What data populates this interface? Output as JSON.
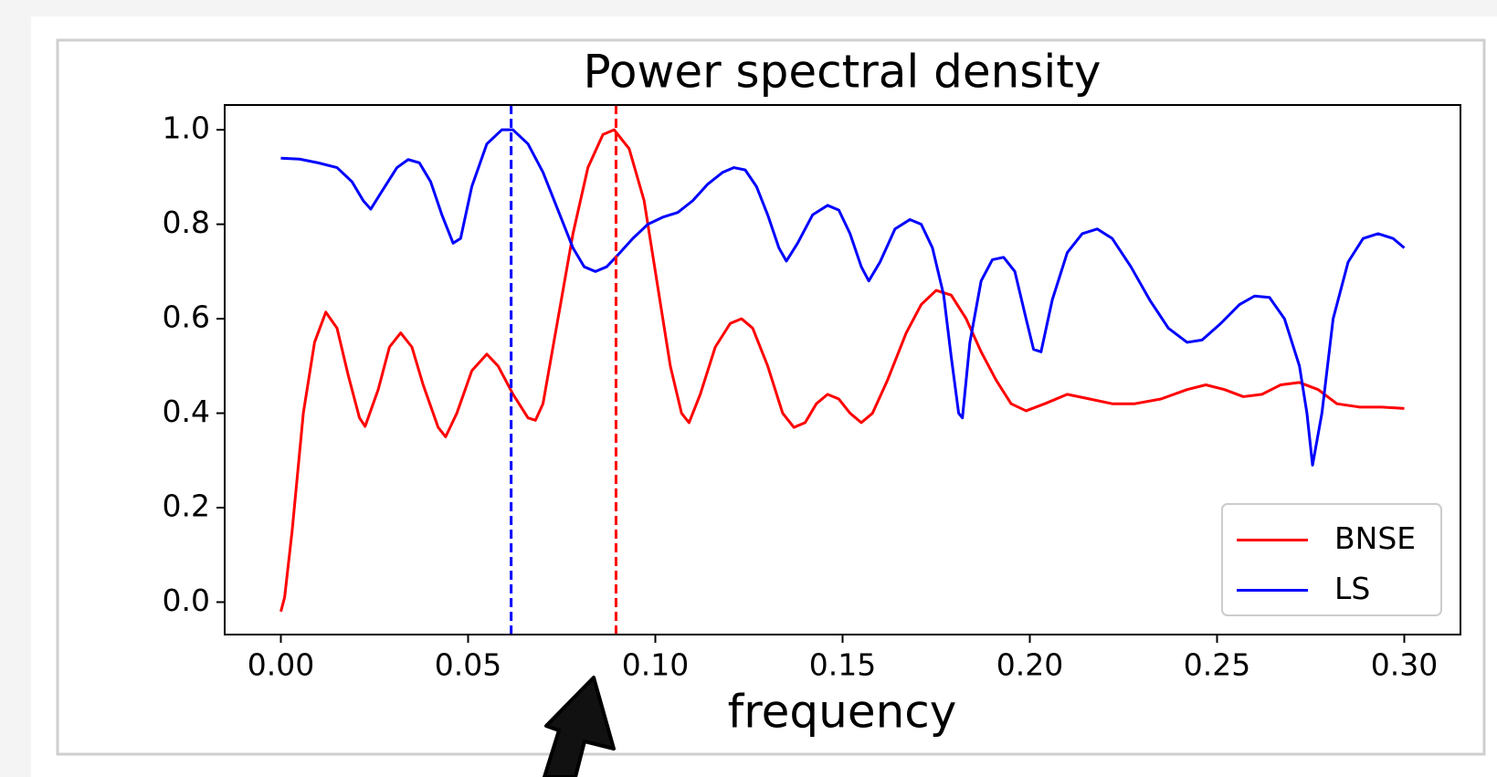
{
  "chart_data": {
    "type": "line",
    "title": "Power spectral density",
    "x_label": "frequency",
    "xlim": [
      -0.015,
      0.315
    ],
    "ylim": [
      -0.0687,
      1.0525
    ],
    "xticks": [
      {
        "value": 0,
        "label": "0.00"
      },
      {
        "value": 0.05,
        "label": "0.05"
      },
      {
        "value": 0.1,
        "label": "0.10"
      },
      {
        "value": 0.15,
        "label": "0.15"
      },
      {
        "value": 0.2,
        "label": "0.20"
      },
      {
        "value": 0.25,
        "label": "0.25"
      },
      {
        "value": 0.3,
        "label": "0.30"
      }
    ],
    "yticks": [
      {
        "value": 0,
        "label": "0.0"
      },
      {
        "value": 0.2,
        "label": "0.2"
      },
      {
        "value": 0.4,
        "label": "0.4"
      },
      {
        "value": 0.6,
        "label": "0.6"
      },
      {
        "value": 0.8,
        "label": "0.8"
      },
      {
        "value": 1,
        "label": "1.0"
      }
    ],
    "legend_position": "lower right",
    "grid": false,
    "vlines": [
      {
        "x": 0.0615,
        "color": "#0000ff"
      },
      {
        "x": 0.0895,
        "color": "#ff0000"
      }
    ],
    "series": [
      {
        "name": "BNSE",
        "color": "#ff0000",
        "x": [
          0,
          0.001,
          0.003,
          0.006,
          0.009,
          0.012,
          0.015,
          0.018,
          0.021,
          0.0225,
          0.026,
          0.029,
          0.032,
          0.035,
          0.038,
          0.042,
          0.044,
          0.047,
          0.051,
          0.055,
          0.058,
          0.062,
          0.066,
          0.068,
          0.07,
          0.074,
          0.078,
          0.082,
          0.086,
          0.089,
          0.093,
          0.097,
          0.1,
          0.104,
          0.107,
          0.109,
          0.112,
          0.116,
          0.12,
          0.123,
          0.126,
          0.13,
          0.134,
          0.137,
          0.14,
          0.143,
          0.146,
          0.149,
          0.152,
          0.155,
          0.158,
          0.162,
          0.167,
          0.171,
          0.175,
          0.179,
          0.183,
          0.187,
          0.191,
          0.195,
          0.199,
          0.204,
          0.21,
          0.216,
          0.222,
          0.228,
          0.235,
          0.242,
          0.247,
          0.252,
          0.257,
          0.262,
          0.267,
          0.272,
          0.277,
          0.282,
          0.288,
          0.294,
          0.3
        ],
        "values": [
          -0.02,
          0.01,
          0.15,
          0.4,
          0.55,
          0.614,
          0.58,
          0.48,
          0.39,
          0.372,
          0.45,
          0.54,
          0.57,
          0.54,
          0.46,
          0.37,
          0.35,
          0.4,
          0.49,
          0.525,
          0.5,
          0.44,
          0.39,
          0.385,
          0.42,
          0.6,
          0.78,
          0.92,
          0.99,
          1.0,
          0.96,
          0.85,
          0.7,
          0.5,
          0.4,
          0.38,
          0.44,
          0.54,
          0.59,
          0.6,
          0.58,
          0.5,
          0.4,
          0.37,
          0.38,
          0.42,
          0.44,
          0.43,
          0.4,
          0.38,
          0.4,
          0.47,
          0.57,
          0.63,
          0.66,
          0.65,
          0.6,
          0.53,
          0.47,
          0.42,
          0.405,
          0.42,
          0.44,
          0.43,
          0.42,
          0.42,
          0.43,
          0.45,
          0.46,
          0.45,
          0.435,
          0.44,
          0.46,
          0.465,
          0.45,
          0.42,
          0.413,
          0.413,
          0.41
        ]
      },
      {
        "name": "LS",
        "color": "#0000ff",
        "x": [
          0,
          0.005,
          0.01,
          0.015,
          0.019,
          0.022,
          0.024,
          0.027,
          0.031,
          0.034,
          0.037,
          0.04,
          0.043,
          0.046,
          0.048,
          0.051,
          0.055,
          0.059,
          0.062,
          0.066,
          0.07,
          0.074,
          0.078,
          0.081,
          0.084,
          0.087,
          0.09,
          0.094,
          0.098,
          0.102,
          0.106,
          0.11,
          0.114,
          0.118,
          0.121,
          0.124,
          0.127,
          0.13,
          0.133,
          0.135,
          0.138,
          0.142,
          0.146,
          0.149,
          0.152,
          0.155,
          0.157,
          0.16,
          0.164,
          0.168,
          0.171,
          0.174,
          0.177,
          0.179,
          0.181,
          0.182,
          0.184,
          0.187,
          0.19,
          0.193,
          0.196,
          0.199,
          0.201,
          0.203,
          0.206,
          0.21,
          0.214,
          0.218,
          0.222,
          0.227,
          0.232,
          0.237,
          0.242,
          0.246,
          0.251,
          0.256,
          0.26,
          0.264,
          0.268,
          0.272,
          0.274,
          0.2755,
          0.278,
          0.281,
          0.285,
          0.289,
          0.293,
          0.297,
          0.3
        ],
        "values": [
          0.94,
          0.938,
          0.93,
          0.92,
          0.89,
          0.85,
          0.832,
          0.87,
          0.92,
          0.937,
          0.93,
          0.89,
          0.82,
          0.76,
          0.77,
          0.88,
          0.97,
          1.0,
          1.0,
          0.97,
          0.91,
          0.83,
          0.75,
          0.71,
          0.7,
          0.71,
          0.735,
          0.77,
          0.8,
          0.815,
          0.825,
          0.85,
          0.885,
          0.91,
          0.92,
          0.915,
          0.88,
          0.82,
          0.75,
          0.722,
          0.76,
          0.82,
          0.84,
          0.83,
          0.78,
          0.71,
          0.68,
          0.72,
          0.79,
          0.81,
          0.8,
          0.75,
          0.65,
          0.52,
          0.4,
          0.39,
          0.55,
          0.68,
          0.725,
          0.73,
          0.7,
          0.6,
          0.535,
          0.53,
          0.64,
          0.74,
          0.78,
          0.79,
          0.77,
          0.71,
          0.64,
          0.58,
          0.55,
          0.555,
          0.59,
          0.63,
          0.648,
          0.645,
          0.6,
          0.5,
          0.4,
          0.29,
          0.4,
          0.6,
          0.72,
          0.77,
          0.78,
          0.77,
          0.75
        ]
      }
    ]
  }
}
